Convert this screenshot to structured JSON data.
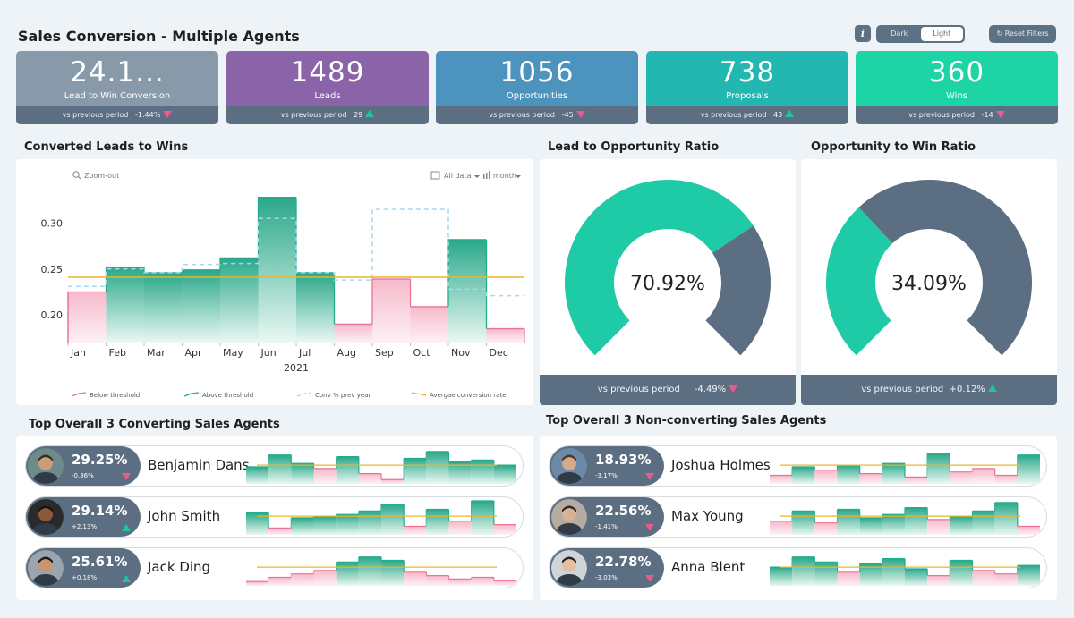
{
  "header": {
    "title": "Sales Conversion - Multiple Agents",
    "info_label": "i",
    "theme_dark": "Dark",
    "theme_light": "Light",
    "reset_label": "Reset Filters"
  },
  "kpis": [
    {
      "value": "24.1...",
      "label": "Lead to Win Conversion",
      "prev_label": "vs previous period",
      "delta": "-1.44%",
      "trend": "down",
      "color": "#8899aa"
    },
    {
      "value": "1489",
      "label": "Leads",
      "prev_label": "vs previous period",
      "delta": "29",
      "trend": "up",
      "color": "#8a63a8"
    },
    {
      "value": "1056",
      "label": "Opportunities",
      "prev_label": "vs previous period",
      "delta": "-45",
      "trend": "down",
      "color": "#4c94bd"
    },
    {
      "value": "738",
      "label": "Proposals",
      "prev_label": "vs previous period",
      "delta": "43",
      "trend": "up",
      "color": "#22b7b0"
    },
    {
      "value": "360",
      "label": "Wins",
      "prev_label": "vs previous period",
      "delta": "-14",
      "trend": "down",
      "color": "#1dd4a5"
    }
  ],
  "sections": {
    "converted": "Converted Leads to Wins",
    "lead_opp": "Lead to Opportunity Ratio",
    "opp_win": "Opportunity to Win Ratio",
    "top_conv": "Top Overall 3 Converting Sales Agents",
    "top_nonconv": "Top Overall 3 Non-converting Sales Agents"
  },
  "main_chart_controls": {
    "zoom_out": "Zoom-out",
    "all_data": "All data",
    "period": "month"
  },
  "chart_data": {
    "type": "area",
    "categories": [
      "Jan",
      "Feb",
      "Mar",
      "Apr",
      "May",
      "Jun",
      "Jul",
      "Aug",
      "Sep",
      "Oct",
      "Nov",
      "Dec"
    ],
    "x_group_label": "2021",
    "series": [
      {
        "name": "Below threshold",
        "values": [
          0.225,
          null,
          null,
          null,
          null,
          null,
          null,
          0.19,
          0.239,
          0.209,
          null,
          0.185
        ]
      },
      {
        "name": "Above threshold",
        "values": [
          null,
          0.252,
          0.246,
          0.249,
          0.262,
          0.328,
          0.246,
          null,
          null,
          null,
          0.282,
          null
        ]
      },
      {
        "name": "Conv % prev year",
        "values": [
          0.231,
          0.25,
          0.246,
          0.255,
          0.256,
          0.305,
          0.246,
          0.238,
          0.315,
          0.315,
          0.228,
          0.221
        ]
      },
      {
        "name": "Avergae conversion rate",
        "values": [
          0.241,
          0.241,
          0.241,
          0.241,
          0.241,
          0.241,
          0.241,
          0.241,
          0.241,
          0.241,
          0.241,
          0.241
        ]
      }
    ],
    "yticks": [
      "0.20",
      "0.25",
      "0.30"
    ],
    "ylim": [
      0.17,
      0.35
    ],
    "legend_position": "bottom",
    "threshold": 0.241
  },
  "donuts": [
    {
      "value": 70.92,
      "label": "70.92%",
      "prev_label": "vs previous period",
      "delta": "-4.49%",
      "trend": "down",
      "fill": "#1ecba6",
      "rest": "#5c6f82"
    },
    {
      "value": 34.09,
      "label": "34.09%",
      "prev_label": "vs previous period",
      "delta": "+0.12%",
      "trend": "up",
      "fill": "#1ecba6",
      "rest": "#5c6f82"
    }
  ],
  "agents_converting": [
    {
      "name": "Benjamin Dans",
      "pct": "29.25%",
      "change": "-0.36%",
      "trend": "down",
      "skin": "#c99c7a",
      "hair": "#3a2a1e",
      "bg": "#6e8a8a",
      "spark": [
        0.2,
        0.34,
        0.24,
        0.18,
        0.32,
        0.12,
        0.05,
        0.3,
        0.38,
        0.26,
        0.28,
        0.22
      ]
    },
    {
      "name": "John Smith",
      "pct": "29.14%",
      "change": "+2.13%",
      "trend": "up",
      "skin": "#8a5a3c",
      "hair": "#1b120c",
      "bg": "#2a2a2a",
      "spark": [
        0.26,
        0.08,
        0.2,
        0.22,
        0.24,
        0.28,
        0.36,
        0.1,
        0.3,
        0.16,
        0.4,
        0.12
      ]
    },
    {
      "name": "Jack Ding",
      "pct": "25.61%",
      "change": "+0.18%",
      "trend": "up",
      "skin": "#c89572",
      "hair": "#1f1a17",
      "bg": "#9aa5ad",
      "spark": [
        0.05,
        0.1,
        0.14,
        0.18,
        0.28,
        0.34,
        0.3,
        0.16,
        0.12,
        0.08,
        0.1,
        0.06
      ]
    }
  ],
  "agents_nonconverting": [
    {
      "name": "Joshua Holmes",
      "pct": "18.93%",
      "change": "-3.17%",
      "trend": "down",
      "skin": "#d4aa88",
      "hair": "#4a3526",
      "bg": "#6c8aa8",
      "spark": [
        0.1,
        0.2,
        0.16,
        0.22,
        0.12,
        0.24,
        0.08,
        0.36,
        0.14,
        0.18,
        0.1,
        0.34
      ]
    },
    {
      "name": "Max Young",
      "pct": "22.56%",
      "change": "-1.41%",
      "trend": "down",
      "skin": "#d7b295",
      "hair": "#2e2620",
      "bg": "#b5aba0",
      "spark": [
        0.16,
        0.28,
        0.14,
        0.3,
        0.2,
        0.24,
        0.32,
        0.18,
        0.22,
        0.28,
        0.38,
        0.1
      ]
    },
    {
      "name": "Anna Blent",
      "pct": "22.78%",
      "change": "-3.03%",
      "trend": "down",
      "skin": "#e2c0a4",
      "hair": "#2a1f1a",
      "bg": "#cfd4d8",
      "spark": [
        0.22,
        0.34,
        0.28,
        0.16,
        0.26,
        0.32,
        0.2,
        0.12,
        0.3,
        0.18,
        0.14,
        0.24
      ]
    }
  ]
}
